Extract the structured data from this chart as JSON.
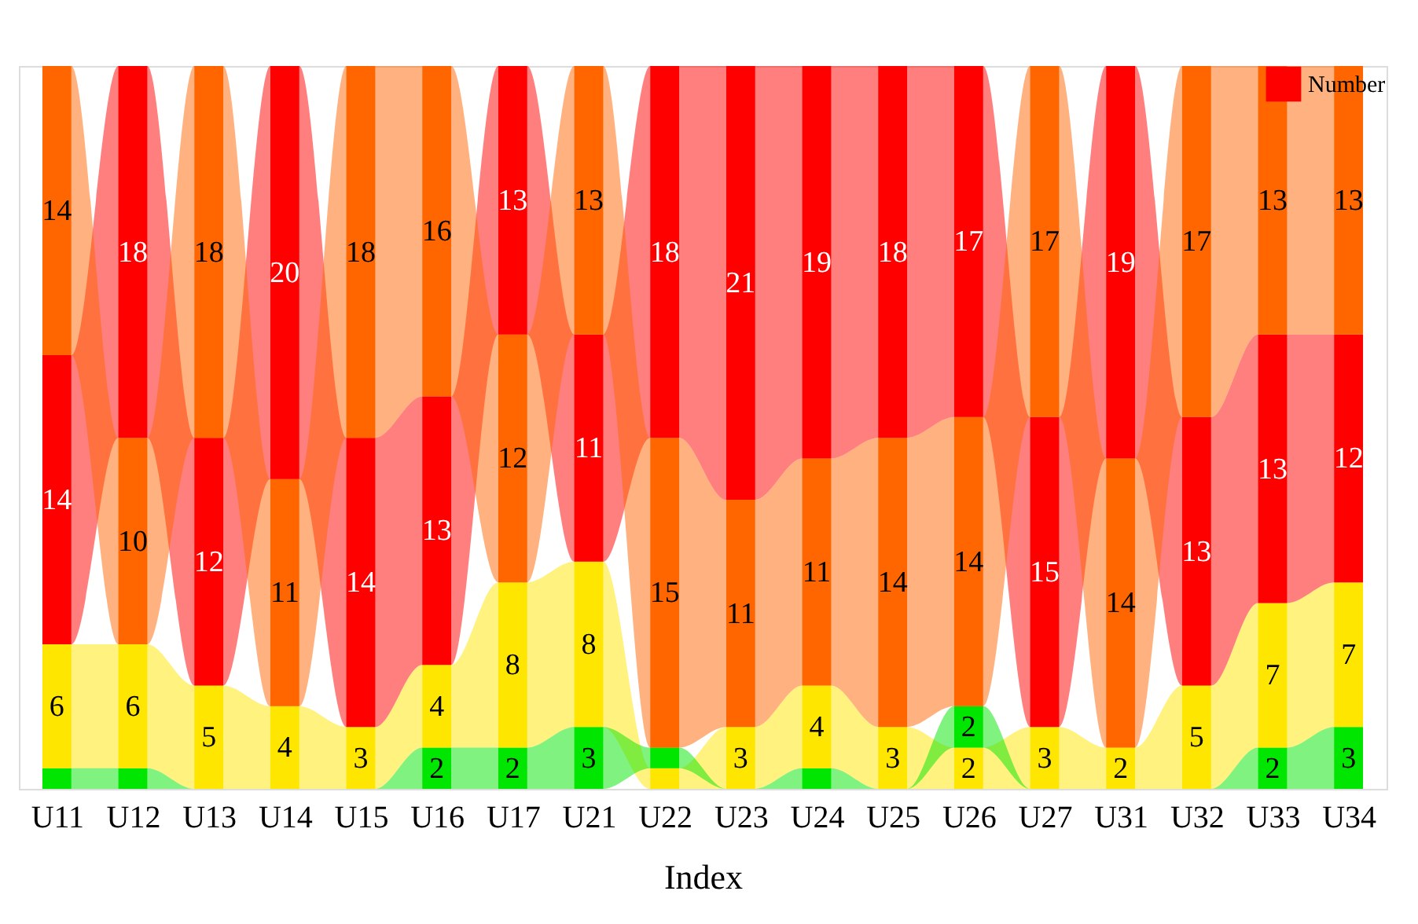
{
  "chart_data": {
    "type": "bar",
    "stacked": true,
    "xlabel": "Index",
    "legend": "top right",
    "tick_labels": "x",
    "categories": [
      "U11",
      "U12",
      "U13",
      "U14",
      "U15",
      "U16",
      "U17",
      "U21",
      "U22",
      "U23",
      "U24",
      "U25",
      "U26",
      "U27",
      "U31",
      "U32",
      "U33",
      "U34"
    ],
    "series": [
      {
        "color": "#ffe600",
        "values": [
          6,
          6,
          5,
          4,
          3,
          4,
          8,
          8,
          1,
          3,
          4,
          3,
          2,
          3,
          2,
          5,
          7,
          7
        ],
        "value_labels": [
          "6",
          "6",
          "5",
          "4",
          "3",
          "4",
          "8",
          "8",
          null,
          "3",
          "4",
          "3",
          "2",
          "3",
          "2",
          "5",
          "7",
          "7"
        ]
      },
      {
        "color": "#00e600",
        "values": [
          1,
          1,
          0,
          0,
          0,
          2,
          2,
          3,
          1,
          0,
          1,
          0,
          2,
          0,
          0,
          0,
          2,
          3
        ],
        "value_labels": [
          null,
          null,
          null,
          null,
          null,
          "2",
          "2",
          "3",
          null,
          null,
          null,
          null,
          "2",
          null,
          null,
          null,
          "2",
          "3"
        ]
      },
      {
        "name": "Number",
        "color": "#ff0000",
        "values": [
          14,
          18,
          12,
          20,
          14,
          13,
          13,
          11,
          18,
          21,
          19,
          18,
          17,
          15,
          19,
          13,
          13,
          12
        ],
        "value_labels": [
          "14",
          "18",
          "12",
          "20",
          "14",
          "13",
          "13",
          "11",
          "18",
          "21",
          "19",
          "18",
          "17",
          "15",
          "19",
          "13",
          "13",
          "12"
        ]
      },
      {
        "color": "#ff6600",
        "values": [
          14,
          10,
          18,
          11,
          18,
          16,
          12,
          13,
          15,
          11,
          11,
          14,
          14,
          17,
          14,
          17,
          13,
          13
        ],
        "value_labels": [
          "14",
          "10",
          "18",
          "11",
          "18",
          "16",
          "12",
          "13",
          "15",
          "11",
          "11",
          "14",
          "14",
          "17",
          "14",
          "17",
          "13",
          "13"
        ]
      }
    ]
  }
}
